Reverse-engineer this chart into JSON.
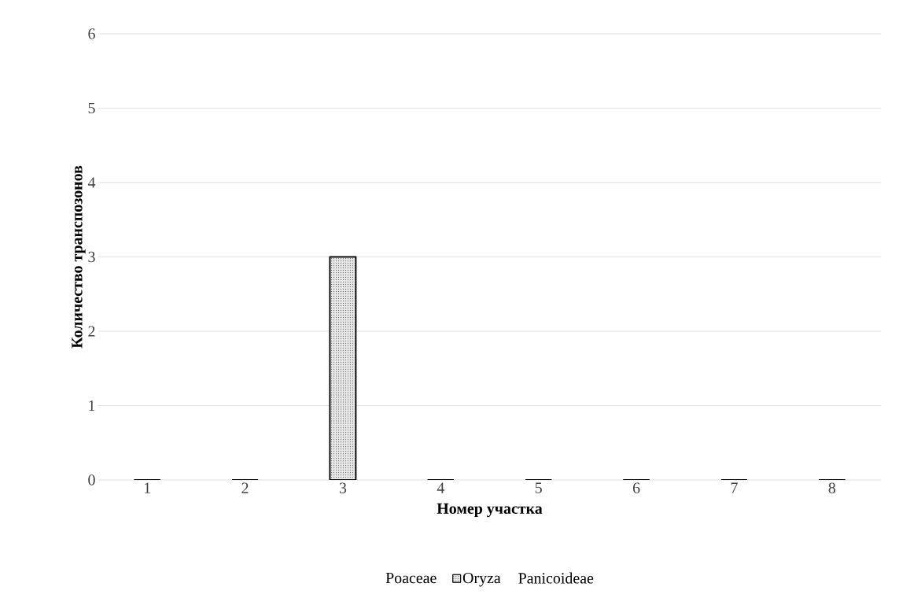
{
  "chart_data": {
    "type": "bar",
    "xlabel": "Номер участка",
    "ylabel": "Количество транспозонов",
    "categories": [
      "1",
      "2",
      "3",
      "4",
      "5",
      "6",
      "7",
      "8"
    ],
    "series": [
      {
        "name": "Poaceae",
        "values": [
          null,
          null,
          null,
          null,
          null,
          null,
          null,
          null
        ]
      },
      {
        "name": "Oryza",
        "color": "#e6e6e6",
        "values": [
          0,
          0,
          3,
          0,
          0,
          0,
          0,
          0
        ]
      },
      {
        "name": "Panicoideae",
        "values": [
          null,
          null,
          null,
          null,
          null,
          null,
          null,
          null
        ]
      }
    ],
    "ylim": [
      0,
      6
    ],
    "yticks": [
      0,
      1,
      2,
      3,
      4,
      5,
      6
    ],
    "grid": "y",
    "legend": "bottom"
  }
}
